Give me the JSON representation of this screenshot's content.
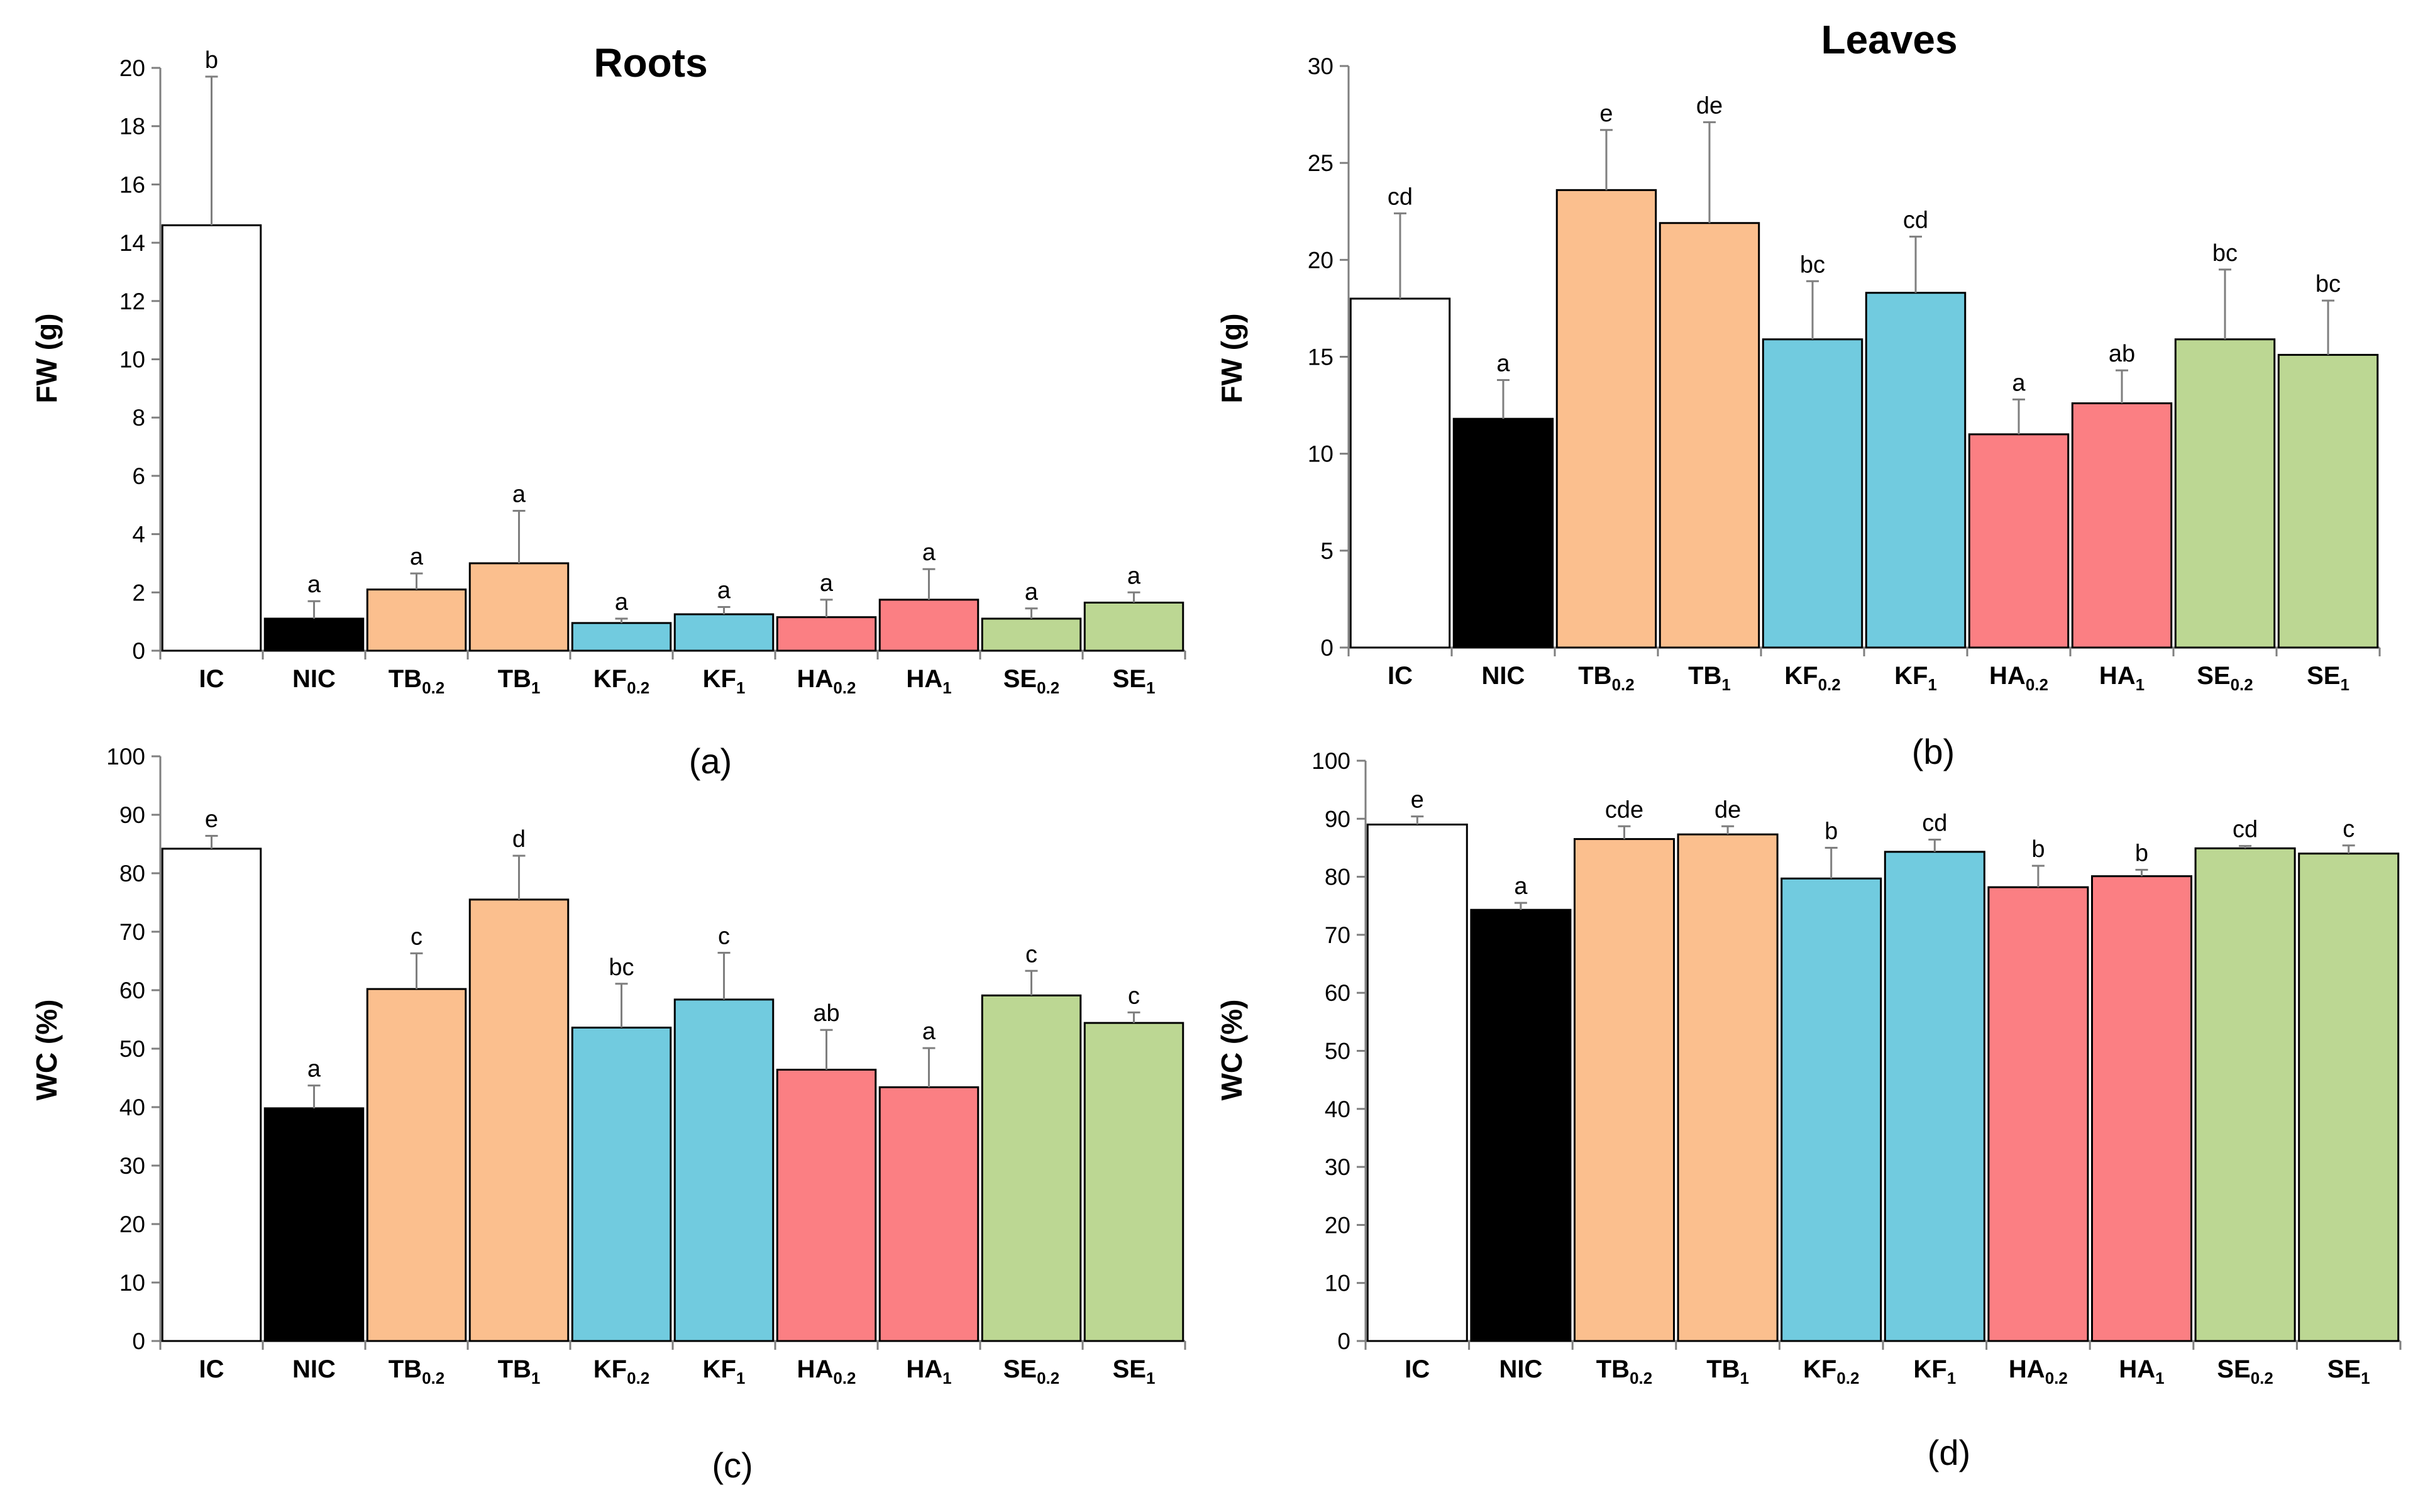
{
  "colors": {
    "IC": "#ffffff",
    "NIC": "#000000",
    "TB": "#fbbf8e",
    "KF": "#71cbdf",
    "HA": "#fb7f83",
    "SE": "#bcd793"
  },
  "chart_data": [
    {
      "type": "bar",
      "panel": "(a)",
      "title": "Roots",
      "ylabel": "FW (g)",
      "ylim": [
        0,
        20
      ],
      "yticks": [
        "0",
        "2",
        "4",
        "6",
        "8",
        "10",
        "12",
        "14",
        "16",
        "18",
        "20"
      ],
      "categories": [
        {
          "main": "IC",
          "sub": ""
        },
        {
          "main": "NIC",
          "sub": ""
        },
        {
          "main": "TB",
          "sub": "0.2"
        },
        {
          "main": "TB",
          "sub": "1"
        },
        {
          "main": "KF",
          "sub": "0.2"
        },
        {
          "main": "KF",
          "sub": "1"
        },
        {
          "main": "HA",
          "sub": "0.2"
        },
        {
          "main": "HA",
          "sub": "1"
        },
        {
          "main": "SE",
          "sub": "0.2"
        },
        {
          "main": "SE",
          "sub": "1"
        }
      ],
      "values": [
        14.6,
        1.1,
        2.1,
        3.0,
        0.95,
        1.25,
        1.15,
        1.75,
        1.1,
        1.65
      ],
      "errors": [
        5.1,
        0.6,
        0.55,
        1.8,
        0.15,
        0.25,
        0.6,
        1.05,
        0.35,
        0.35
      ],
      "letters": [
        "b",
        "a",
        "a",
        "a",
        "a",
        "a",
        "a",
        "a",
        "a",
        "a"
      ]
    },
    {
      "type": "bar",
      "panel": "(b)",
      "title": "Leaves",
      "ylabel": "FW (g)",
      "ylim": [
        0,
        30
      ],
      "yticks": [
        "0",
        "5",
        "10",
        "15",
        "20",
        "25",
        "30"
      ],
      "categories": [
        {
          "main": "IC",
          "sub": ""
        },
        {
          "main": "NIC",
          "sub": ""
        },
        {
          "main": "TB",
          "sub": "0.2"
        },
        {
          "main": "TB",
          "sub": "1"
        },
        {
          "main": "KF",
          "sub": "0.2"
        },
        {
          "main": "KF",
          "sub": "1"
        },
        {
          "main": "HA",
          "sub": "0.2"
        },
        {
          "main": "HA",
          "sub": "1"
        },
        {
          "main": "SE",
          "sub": "0.2"
        },
        {
          "main": "SE",
          "sub": "1"
        }
      ],
      "values": [
        18.0,
        11.8,
        23.6,
        21.9,
        15.9,
        18.3,
        11.0,
        12.6,
        15.9,
        15.1
      ],
      "errors": [
        4.4,
        2.0,
        3.1,
        5.2,
        3.0,
        2.9,
        1.8,
        1.7,
        3.6,
        2.8
      ],
      "letters": [
        "cd",
        "a",
        "e",
        "de",
        "bc",
        "cd",
        "a",
        "ab",
        "bc",
        "bc"
      ]
    },
    {
      "type": "bar",
      "panel": "(c)",
      "title": "",
      "ylabel": "WC (%)",
      "ylim": [
        0,
        100
      ],
      "yticks": [
        "0",
        "10",
        "20",
        "30",
        "40",
        "50",
        "60",
        "70",
        "80",
        "90",
        "100"
      ],
      "categories": [
        {
          "main": "IC",
          "sub": ""
        },
        {
          "main": "NIC",
          "sub": ""
        },
        {
          "main": "TB",
          "sub": "0.2"
        },
        {
          "main": "TB",
          "sub": "1"
        },
        {
          "main": "KF",
          "sub": "0.2"
        },
        {
          "main": "KF",
          "sub": "1"
        },
        {
          "main": "HA",
          "sub": "0.2"
        },
        {
          "main": "HA",
          "sub": "1"
        },
        {
          "main": "SE",
          "sub": "0.2"
        },
        {
          "main": "SE",
          "sub": "1"
        }
      ],
      "values": [
        84.2,
        39.8,
        60.2,
        75.5,
        53.6,
        58.4,
        46.4,
        43.4,
        59.1,
        54.4
      ],
      "errors": [
        2.2,
        3.9,
        6.1,
        7.5,
        7.5,
        8.0,
        6.8,
        6.7,
        4.2,
        1.8
      ],
      "letters": [
        "e",
        "a",
        "c",
        "d",
        "bc",
        "c",
        "ab",
        "a",
        "c",
        "c"
      ]
    },
    {
      "type": "bar",
      "panel": "(d)",
      "title": "",
      "ylabel": "WC (%)",
      "ylim": [
        0,
        100
      ],
      "yticks": [
        "0",
        "10",
        "20",
        "30",
        "40",
        "50",
        "60",
        "70",
        "80",
        "90",
        "100"
      ],
      "categories": [
        {
          "main": "IC",
          "sub": ""
        },
        {
          "main": "NIC",
          "sub": ""
        },
        {
          "main": "TB",
          "sub": "0.2"
        },
        {
          "main": "TB",
          "sub": "1"
        },
        {
          "main": "KF",
          "sub": "0.2"
        },
        {
          "main": "KF",
          "sub": "1"
        },
        {
          "main": "HA",
          "sub": "0.2"
        },
        {
          "main": "HA",
          "sub": "1"
        },
        {
          "main": "SE",
          "sub": "0.2"
        },
        {
          "main": "SE",
          "sub": "1"
        }
      ],
      "values": [
        89.0,
        74.3,
        86.5,
        87.3,
        79.7,
        84.3,
        78.2,
        80.1,
        84.9,
        84.0
      ],
      "errors": [
        1.4,
        1.2,
        2.2,
        1.4,
        5.3,
        2.1,
        3.7,
        1.1,
        0.4,
        1.4
      ],
      "letters": [
        "e",
        "a",
        "cde",
        "de",
        "b",
        "cd",
        "b",
        "b",
        "cd",
        "c"
      ]
    }
  ]
}
